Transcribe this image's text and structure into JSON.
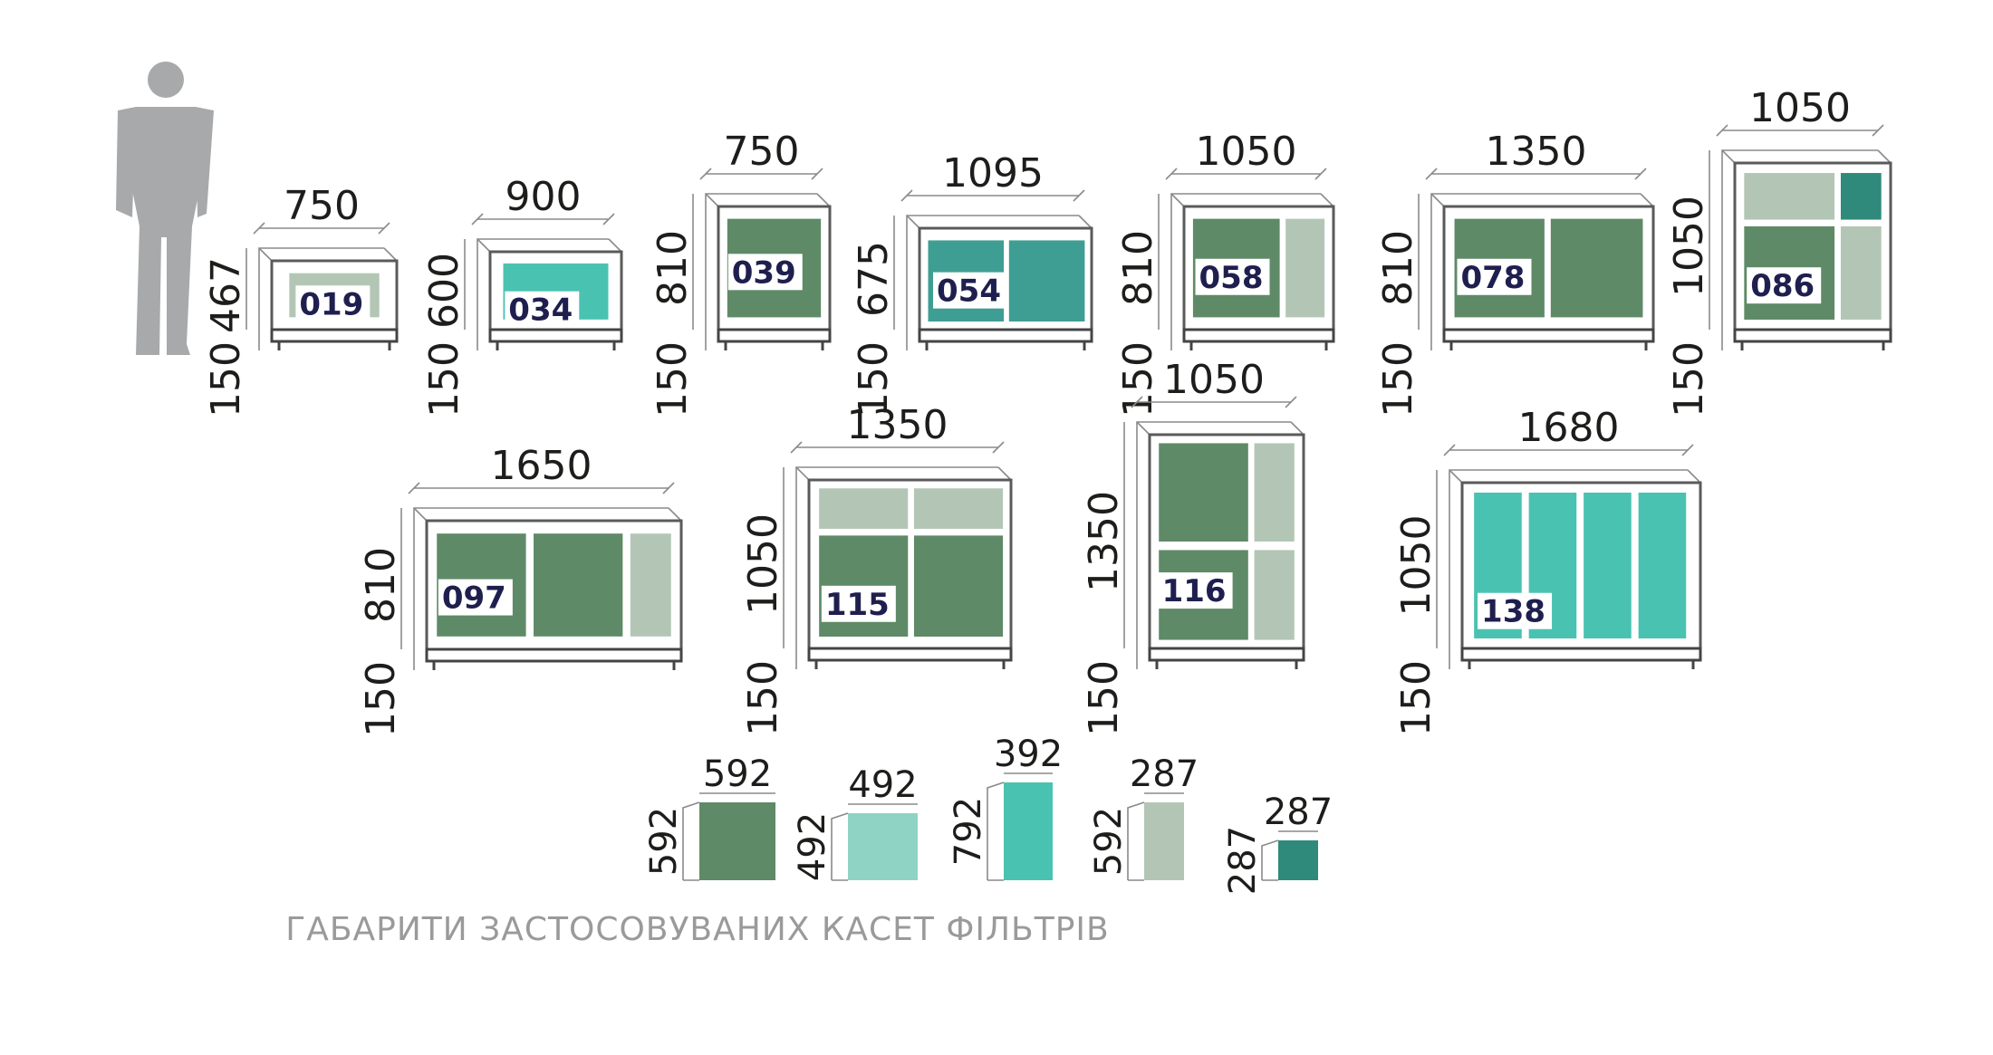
{
  "colors": {
    "dark_green": "#5f8a67",
    "light_sage": "#b3c6b5",
    "teal": "#3f9e93",
    "mint": "#4ac2b1",
    "light_mint": "#8fd3c5",
    "dark_teal": "#2f8a7b",
    "person": "#a7a9ab",
    "code_text": "#1f1f4f"
  },
  "person_icon": "standing-man-silhouette",
  "units": [
    {
      "code": "019",
      "width": "750",
      "height": "467",
      "base": "150"
    },
    {
      "code": "034",
      "width": "900",
      "height": "600",
      "base": "150"
    },
    {
      "code": "039",
      "width": "750",
      "height": "810",
      "base": "150"
    },
    {
      "code": "054",
      "width": "1095",
      "height": "675",
      "base": "150"
    },
    {
      "code": "058",
      "width": "1050",
      "height": "810",
      "base": "150"
    },
    {
      "code": "078",
      "width": "1350",
      "height": "810",
      "base": "150"
    },
    {
      "code": "086",
      "width": "1050",
      "height": "1050",
      "base": "150"
    },
    {
      "code": "097",
      "width": "1650",
      "height": "810",
      "base": "150"
    },
    {
      "code": "115",
      "width": "1350",
      "height": "1050",
      "base": "150"
    },
    {
      "code": "116",
      "width": "1050",
      "height": "1350",
      "base": "150"
    },
    {
      "code": "138",
      "width": "1680",
      "height": "1050",
      "base": "150"
    }
  ],
  "cassettes": [
    {
      "width": "592",
      "height": "592",
      "color": "dark_green"
    },
    {
      "width": "492",
      "height": "492",
      "color": "light_mint"
    },
    {
      "width": "392",
      "height": "792",
      "color": "mint"
    },
    {
      "width": "287",
      "height": "592",
      "color": "light_sage"
    },
    {
      "width": "287",
      "height": "287",
      "color": "dark_teal"
    }
  ],
  "caption": "ГАБАРИТИ ЗАСТОСОВУВАНИХ КАСЕТ ФІЛЬТРІВ"
}
